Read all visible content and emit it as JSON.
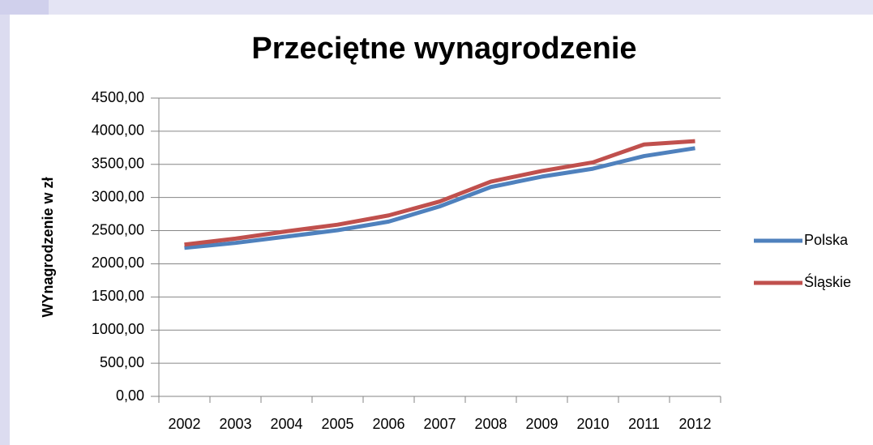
{
  "chart_data": {
    "type": "line",
    "title": "Przeciętne wynagrodzenie",
    "y_label": "WYnagrodzenie w zł",
    "categories": [
      "2002",
      "2003",
      "2004",
      "2005",
      "2006",
      "2007",
      "2008",
      "2009",
      "2010",
      "2011",
      "2012"
    ],
    "series": [
      {
        "name": "Polska",
        "color": "#4f81bd",
        "values": [
          2240,
          2315,
          2410,
          2507,
          2637,
          2866,
          3158,
          3315,
          3435,
          3625,
          3744
        ]
      },
      {
        "name": "Śląskie",
        "color": "#c0504d",
        "values": [
          2290,
          2380,
          2490,
          2590,
          2730,
          2940,
          3240,
          3400,
          3530,
          3800,
          3850
        ]
      }
    ],
    "ylim": [
      0,
      4500
    ],
    "yticks": [
      {
        "value": 0,
        "label": "0,00"
      },
      {
        "value": 500,
        "label": "500,00"
      },
      {
        "value": 1000,
        "label": "1000,00"
      },
      {
        "value": 1500,
        "label": "1500,00"
      },
      {
        "value": 2000,
        "label": "2000,00"
      },
      {
        "value": 2500,
        "label": "2500,00"
      },
      {
        "value": 3000,
        "label": "3000,00"
      },
      {
        "value": 3500,
        "label": "3500,00"
      },
      {
        "value": 4000,
        "label": "4000,00"
      },
      {
        "value": 4500,
        "label": "4500,00"
      }
    ],
    "grid": true,
    "legend": "right"
  }
}
